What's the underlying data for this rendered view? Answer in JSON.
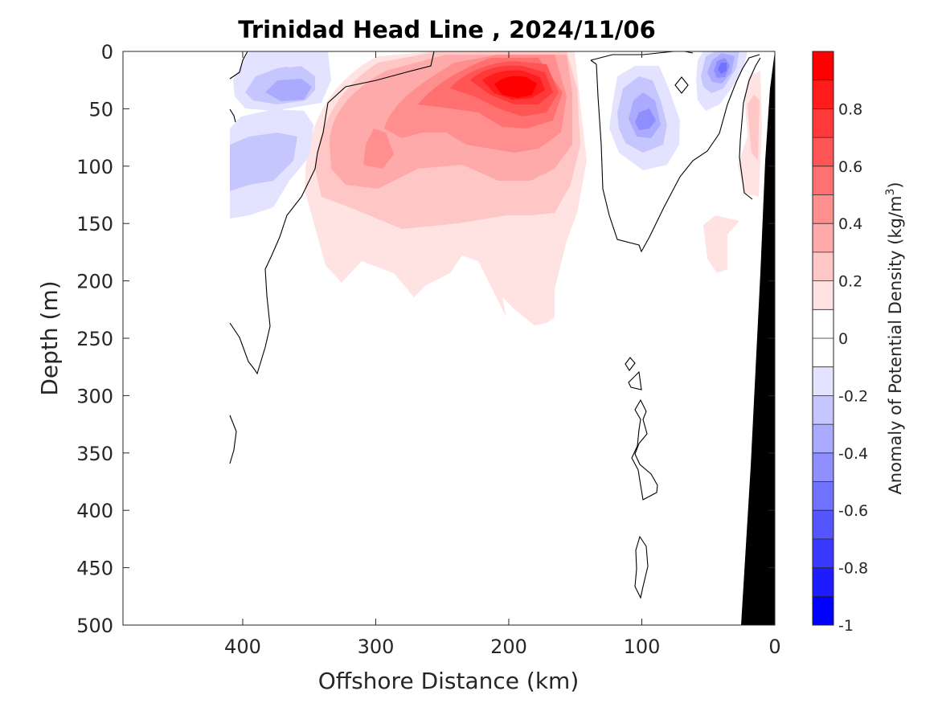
{
  "chart_data": {
    "type": "heatmap",
    "subtype": "filled-contour",
    "title": "Trinidad Head Line , 2024/11/06",
    "xlabel": "Offshore Distance (km)",
    "ylabel": "Depth (m)",
    "xlim": [
      490,
      0
    ],
    "ylim": [
      500,
      0
    ],
    "x_reversed": true,
    "y_reversed": true,
    "xticks": [
      400,
      300,
      200,
      100,
      0
    ],
    "yticks": [
      0,
      50,
      100,
      150,
      200,
      250,
      300,
      350,
      400,
      450,
      500
    ],
    "grid": false,
    "colorbar": {
      "label_main": "Anomaly of Potential Density (kg/m",
      "label_sup": "3",
      "label_end": ")",
      "range": [
        -1,
        1
      ],
      "ticks": [
        0.8,
        0.6,
        0.4,
        0.2,
        0,
        -0.2,
        -0.4,
        -0.6,
        -0.8,
        -1
      ],
      "tick_labels": [
        "0.8",
        "0.6",
        "0.4",
        "0.2",
        "0",
        "-0.2",
        "-0.4",
        "-0.6",
        "-0.8",
        "-1"
      ],
      "levels": [
        {
          "from": 0.9,
          "to": 1.0,
          "color": "#ff0000"
        },
        {
          "from": 0.8,
          "to": 0.9,
          "color": "#ff1c1c"
        },
        {
          "from": 0.7,
          "to": 0.8,
          "color": "#ff3939"
        },
        {
          "from": 0.6,
          "to": 0.7,
          "color": "#ff5555"
        },
        {
          "from": 0.5,
          "to": 0.6,
          "color": "#ff7171"
        },
        {
          "from": 0.4,
          "to": 0.5,
          "color": "#ff8e8e"
        },
        {
          "from": 0.3,
          "to": 0.4,
          "color": "#ffaaaa"
        },
        {
          "from": 0.2,
          "to": 0.3,
          "color": "#ffc6c6"
        },
        {
          "from": 0.1,
          "to": 0.2,
          "color": "#ffe3e3"
        },
        {
          "from": 0.0,
          "to": 0.1,
          "color": "#ffffff"
        },
        {
          "from": -0.1,
          "to": 0.0,
          "color": "#ffffff"
        },
        {
          "from": -0.2,
          "to": -0.1,
          "color": "#e3e3ff"
        },
        {
          "from": -0.3,
          "to": -0.2,
          "color": "#c6c6ff"
        },
        {
          "from": -0.4,
          "to": -0.3,
          "color": "#aaaaff"
        },
        {
          "from": -0.5,
          "to": -0.4,
          "color": "#8e8eff"
        },
        {
          "from": -0.6,
          "to": -0.5,
          "color": "#7171ff"
        },
        {
          "from": -0.7,
          "to": -0.6,
          "color": "#5555ff"
        },
        {
          "from": -0.8,
          "to": -0.7,
          "color": "#3939ff"
        },
        {
          "from": -0.9,
          "to": -0.8,
          "color": "#1c1cff"
        },
        {
          "from": -1.0,
          "to": -0.9,
          "color": "#0000ff"
        }
      ]
    },
    "regions": [
      {
        "name": "positive-anomaly-core",
        "center_km": 195,
        "center_depth_m": 35,
        "peak": 0.95
      },
      {
        "name": "positive-anomaly-secondary",
        "center_km": 300,
        "center_depth_m": 90,
        "peak": 0.5
      },
      {
        "name": "positive-anomaly-nearshore",
        "center_km": 15,
        "center_depth_m": 70,
        "peak": 0.35
      },
      {
        "name": "negative-anomaly-offshore-upper",
        "center_km": 365,
        "center_depth_m": 32,
        "peak": -0.4
      },
      {
        "name": "negative-anomaly-offshore-lower",
        "center_km": 385,
        "center_depth_m": 95,
        "peak": -0.3
      },
      {
        "name": "negative-anomaly-100km",
        "center_km": 100,
        "center_depth_m": 55,
        "peak": -0.4
      },
      {
        "name": "negative-anomaly-40km",
        "center_km": 42,
        "center_depth_m": 15,
        "peak": -0.55
      }
    ],
    "bathymetry_color": "#000000"
  }
}
